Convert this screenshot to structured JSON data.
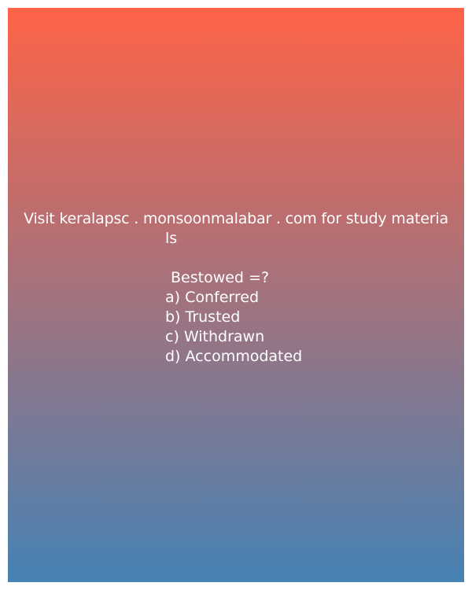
{
  "promo": {
    "line1": "Visit keralapsc . monsoonmalabar . com for study materia",
    "line2": "ls"
  },
  "question": "Bestowed =?",
  "options": [
    "a) Conferred",
    "b) Trusted",
    "c) Withdrawn",
    "d) Accommodated"
  ],
  "colors": {
    "gradient_top": "#ff6347",
    "gradient_bottom": "#4682b4",
    "text": "#ffffff"
  }
}
